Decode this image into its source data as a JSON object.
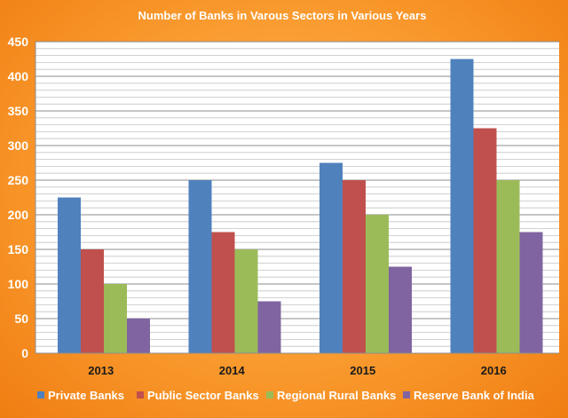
{
  "chart_data": {
    "type": "bar",
    "title": "Number of Banks in Varous Sectors in Various Years",
    "categories": [
      "2013",
      "2014",
      "2015",
      "2016"
    ],
    "series": [
      {
        "name": "Private Banks",
        "values": [
          225,
          250,
          275,
          425
        ],
        "color": "#4f81bd"
      },
      {
        "name": "Public Sector Banks",
        "values": [
          150,
          175,
          250,
          325
        ],
        "color": "#c0504d"
      },
      {
        "name": "Regional Rural Banks",
        "values": [
          100,
          150,
          200,
          250
        ],
        "color": "#9bbb59"
      },
      {
        "name": "Reserve Bank of India",
        "values": [
          50,
          75,
          125,
          175
        ],
        "color": "#8064a2"
      }
    ],
    "ylim": [
      0,
      450
    ],
    "y_ticks": [
      0,
      50,
      100,
      150,
      200,
      250,
      300,
      350,
      400,
      450
    ],
    "y_minor_step": 10,
    "grid": true,
    "legend_position": "bottom"
  }
}
